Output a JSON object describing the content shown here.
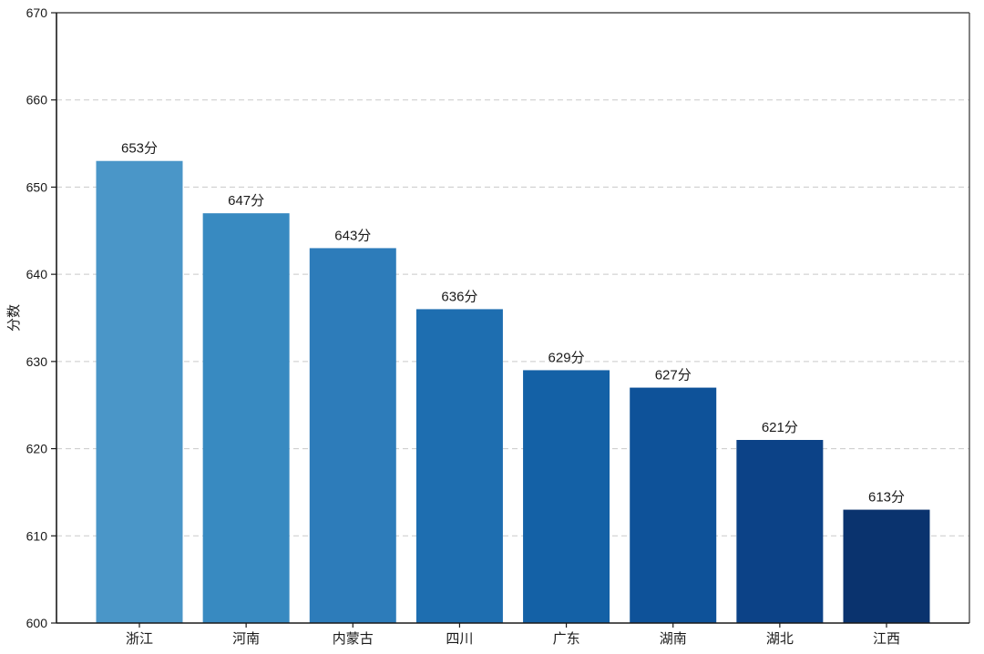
{
  "chart_data": {
    "type": "bar",
    "title": "",
    "xlabel": "",
    "ylabel": "分数",
    "categories": [
      "浙江",
      "河南",
      "内蒙古",
      "四川",
      "广东",
      "湖南",
      "湖北",
      "江西"
    ],
    "values": [
      653,
      647,
      643,
      636,
      629,
      627,
      621,
      613
    ],
    "value_labels": [
      "653分",
      "647分",
      "643分",
      "636分",
      "629分",
      "627分",
      "621分",
      "613分"
    ],
    "bar_colors": [
      "#4A96C8",
      "#388AC1",
      "#2D7CBA",
      "#1E6EB0",
      "#1461A6",
      "#0E5299",
      "#0C4287",
      "#0A336E"
    ],
    "ylim": [
      600,
      670
    ],
    "yticks": [
      600,
      610,
      620,
      630,
      640,
      650,
      660,
      670
    ],
    "grid": "horizontal-dashed",
    "legend": "none"
  },
  "colors": {
    "axis_primary": "#1a1a1a",
    "axis_secondary": "#4d4d4d",
    "grid": "#c9c9c9",
    "text": "#1a1a1a",
    "background": "#ffffff"
  }
}
